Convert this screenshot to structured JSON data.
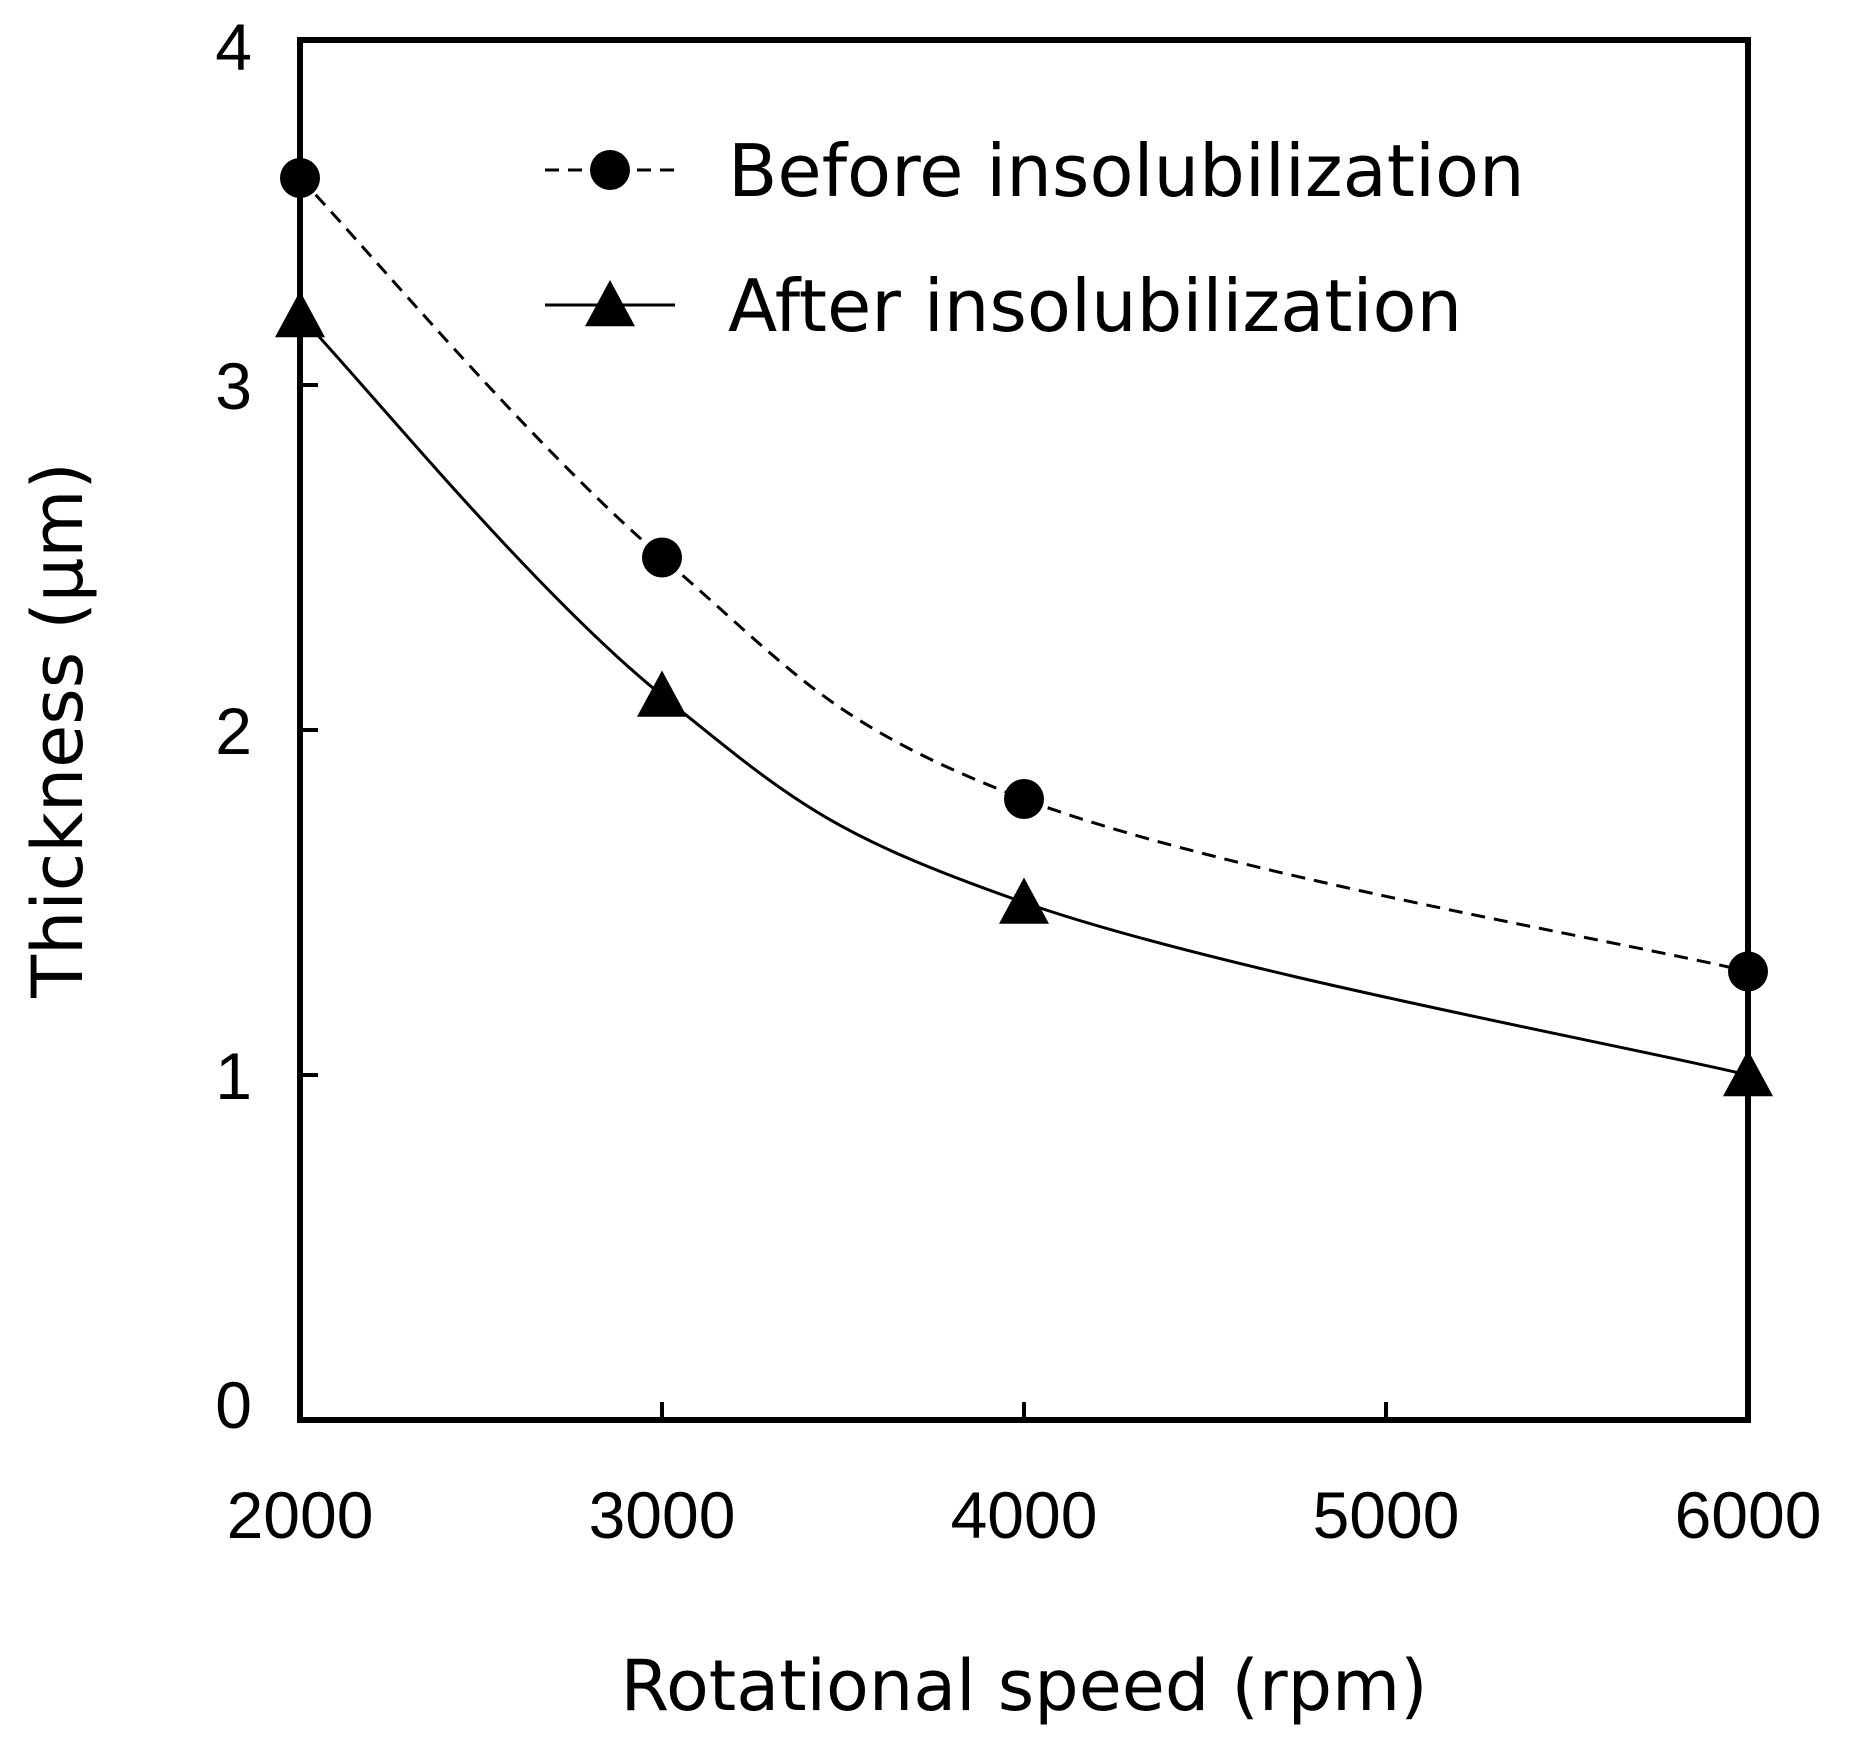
{
  "chart_data": {
    "type": "line",
    "title": "",
    "xlabel": "Rotational speed  (rpm)",
    "ylabel": "Thickness  (μm)",
    "xlim": [
      2000,
      6000
    ],
    "ylim": [
      0,
      4
    ],
    "xticks": [
      2000,
      3000,
      4000,
      5000,
      6000
    ],
    "yticks": [
      0,
      1,
      2,
      3,
      4
    ],
    "grid": false,
    "legend_position": "top-right",
    "series": [
      {
        "name": "Before insolubilization",
        "marker": "circle",
        "line_style": "dashed",
        "color": "#000000",
        "x": [
          2000,
          3000,
          4000,
          6000
        ],
        "y": [
          3.6,
          2.5,
          1.8,
          1.3
        ]
      },
      {
        "name": "After insolubilization",
        "marker": "triangle",
        "line_style": "solid",
        "color": "#000000",
        "x": [
          2000,
          3000,
          4000,
          6000
        ],
        "y": [
          3.2,
          2.1,
          1.5,
          1.0
        ]
      }
    ]
  }
}
